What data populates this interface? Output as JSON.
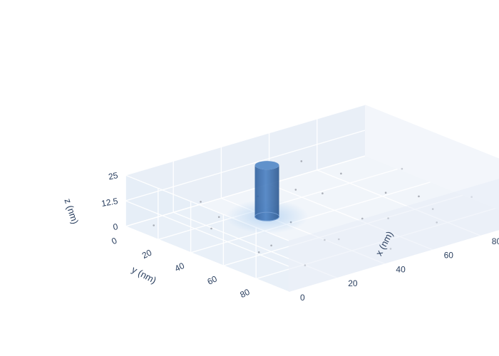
{
  "chart_data": {
    "type": "scatter3d",
    "axes": {
      "x": {
        "title": "x (nm)",
        "ticks": [
          "0",
          "20",
          "40",
          "60",
          "80"
        ],
        "range": [
          0,
          100
        ]
      },
      "y": {
        "title": "y (nm)",
        "ticks": [
          "0",
          "20",
          "40",
          "60",
          "80"
        ],
        "range": [
          0,
          100
        ]
      },
      "z": {
        "title": "z (nm)",
        "ticks": [
          "0",
          "12.5",
          "25"
        ],
        "range": [
          0,
          25
        ]
      }
    },
    "cylinder": {
      "center_x": 40,
      "center_y": 28,
      "radius": 6,
      "z_min": 0,
      "z_max": 25
    },
    "scatter_points": [
      [
        5,
        10,
        2
      ],
      [
        12,
        35,
        6
      ],
      [
        20,
        60,
        3
      ],
      [
        30,
        78,
        8
      ],
      [
        45,
        15,
        4
      ],
      [
        55,
        40,
        10
      ],
      [
        62,
        70,
        5
      ],
      [
        75,
        22,
        7
      ],
      [
        85,
        55,
        3
      ],
      [
        90,
        80,
        9
      ],
      [
        15,
        88,
        4
      ],
      [
        35,
        50,
        6
      ],
      [
        48,
        92,
        2
      ],
      [
        68,
        8,
        11
      ],
      [
        78,
        45,
        4
      ],
      [
        22,
        25,
        5
      ],
      [
        58,
        60,
        3
      ],
      [
        8,
        70,
        7
      ],
      [
        95,
        30,
        5
      ],
      [
        40,
        72,
        3
      ],
      [
        70,
        88,
        6
      ],
      [
        28,
        5,
        4
      ],
      [
        82,
        68,
        2
      ],
      [
        52,
        28,
        9
      ]
    ],
    "grid": true,
    "colors": {
      "cylinder": "#3f72b4",
      "cylinder_top": "#5a8cc8",
      "panel": "#e5ecf6",
      "grid": "#ffffff",
      "point": "#8a8f98"
    }
  }
}
